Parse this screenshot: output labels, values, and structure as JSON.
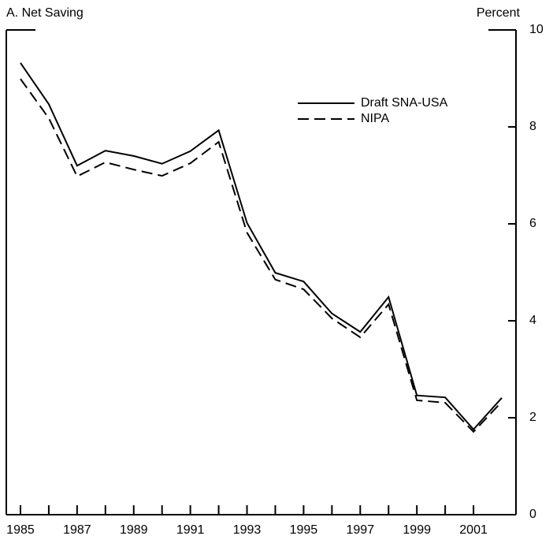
{
  "chart_data": {
    "type": "line",
    "title": "A. Net Saving",
    "y_axis_label": "Percent",
    "x": [
      1985,
      1986,
      1987,
      1988,
      1989,
      1990,
      1991,
      1992,
      1993,
      1994,
      1995,
      1996,
      1997,
      1998,
      1999,
      2000,
      2001,
      2002
    ],
    "series": [
      {
        "name": "Draft SNA-USA",
        "color": "#000000",
        "dash": "solid",
        "values": [
          9.32,
          8.47,
          7.2,
          7.51,
          7.4,
          7.24,
          7.5,
          7.93,
          6.02,
          4.99,
          4.81,
          4.15,
          3.77,
          4.49,
          2.46,
          2.42,
          1.76,
          2.41
        ]
      },
      {
        "name": "NIPA",
        "color": "#000000",
        "dash": "dashed",
        "values": [
          8.99,
          8.18,
          6.98,
          7.27,
          7.12,
          6.99,
          7.25,
          7.69,
          5.82,
          4.85,
          4.65,
          4.05,
          3.66,
          4.34,
          2.36,
          2.31,
          1.71,
          2.33
        ]
      }
    ],
    "xlim": [
      1984.5,
      2002.5
    ],
    "xticks": [
      1985,
      1987,
      1989,
      1991,
      1993,
      1995,
      1997,
      1999,
      2001
    ],
    "ylim": [
      0,
      10
    ],
    "yticks": [
      0,
      2,
      4,
      6,
      8,
      10
    ],
    "y_axis_side": "right",
    "grid": false
  }
}
